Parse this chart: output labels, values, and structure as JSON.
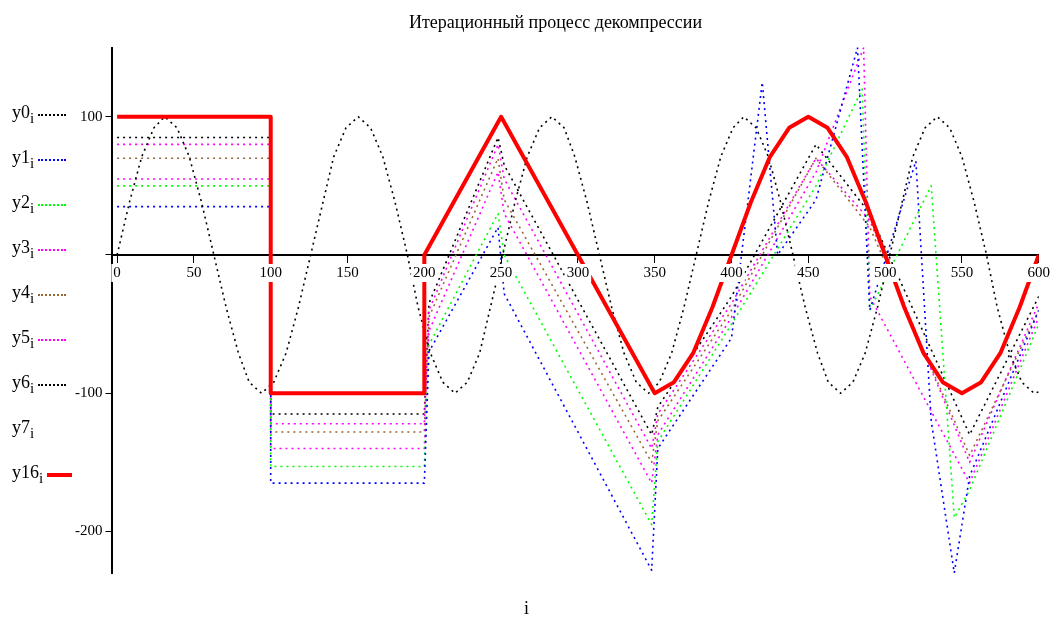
{
  "chart_data": {
    "type": "line",
    "title": "Итерационный процесс декомпрессии",
    "xlabel": "i",
    "xlim": [
      -3,
      600
    ],
    "xticks": [
      0,
      50,
      100,
      150,
      200,
      250,
      300,
      350,
      400,
      450,
      500,
      550,
      600
    ],
    "ylim": [
      -230,
      150
    ],
    "yticks": [
      -200,
      -100,
      {
        "value": 0,
        "label": null
      },
      100
    ],
    "legend": "left",
    "annotations": [
      "y7$_{i}$"
    ],
    "marker": "none",
    "line_style": "dotted",
    "series": [
      {
        "name": "y0$_{i}$",
        "color": "#000000",
        "x": [
          0,
          8,
          16,
          24,
          31,
          39,
          47,
          55,
          63,
          71,
          79,
          86,
          94,
          102,
          110,
          118,
          126,
          134,
          141,
          149,
          157,
          165,
          173,
          181,
          189,
          196,
          204,
          212,
          220,
          228,
          236,
          243,
          251,
          259,
          267,
          275,
          283,
          291,
          298,
          306,
          314,
          322,
          330,
          338,
          346,
          353,
          361,
          369,
          377,
          385,
          393,
          401,
          408,
          416,
          424,
          432,
          440,
          448,
          456,
          463,
          471,
          479,
          487,
          495,
          503,
          511,
          518,
          526,
          534,
          542,
          550,
          558,
          566,
          573,
          581,
          589,
          597,
          600
        ],
        "values": [
          0,
          38,
          71,
          92,
          100,
          92,
          71,
          38,
          0,
          -38,
          -71,
          -92,
          -100,
          -92,
          -71,
          -38,
          0,
          38,
          71,
          92,
          100,
          92,
          71,
          38,
          0,
          -38,
          -71,
          -92,
          -100,
          -92,
          -71,
          -38,
          0,
          38,
          71,
          92,
          100,
          92,
          71,
          38,
          0,
          -38,
          -71,
          -92,
          -100,
          -92,
          -71,
          -38,
          0,
          38,
          71,
          92,
          100,
          92,
          71,
          38,
          0,
          -38,
          -71,
          -92,
          -100,
          -92,
          -71,
          -38,
          0,
          38,
          71,
          92,
          100,
          92,
          71,
          38,
          0,
          -38,
          -71,
          -92,
          -100,
          -99
        ]
      },
      {
        "name": "y1$_{i}$",
        "color": "#0000ff",
        "x": [
          0,
          100,
          100,
          200,
          203,
          248,
          252,
          348,
          352,
          400,
          420,
          430,
          455,
          482,
          490,
          520,
          530,
          545,
          555,
          600
        ],
        "values": [
          35,
          35,
          -165,
          -165,
          -70,
          20,
          -28,
          -228,
          -140,
          -60,
          125,
          0,
          40,
          150,
          -40,
          68,
          -120,
          -230,
          -160,
          -40
        ]
      },
      {
        "name": "y2$_{i}$",
        "color": "#00ff00",
        "x": [
          0,
          100,
          100,
          200,
          203,
          248,
          252,
          348,
          352,
          400,
          455,
          485,
          490,
          530,
          545,
          555,
          600
        ],
        "values": [
          50,
          50,
          -153,
          -153,
          -65,
          30,
          0,
          -195,
          -135,
          -50,
          50,
          120,
          -40,
          50,
          -190,
          -170,
          -50
        ]
      },
      {
        "name": "y3$_{i}$",
        "color": "#ff00ff",
        "x": [
          0,
          100,
          100,
          200,
          203,
          248,
          252,
          348,
          352,
          400,
          455,
          486,
          490,
          555,
          600
        ],
        "values": [
          55,
          55,
          -140,
          -140,
          -55,
          60,
          30,
          -165,
          -130,
          -45,
          60,
          150,
          -30,
          -165,
          -45
        ]
      },
      {
        "name": "y4$_{i}$",
        "color": "#996633",
        "x": [
          0,
          100,
          100,
          200,
          203,
          248,
          252,
          348,
          352,
          400,
          455,
          490,
          555,
          600
        ],
        "values": [
          70,
          70,
          -128,
          -128,
          -45,
          70,
          40,
          -150,
          -120,
          -40,
          70,
          20,
          -145,
          -40
        ]
      },
      {
        "name": "y5$_{i}$",
        "color": "#ff00ff",
        "x": [
          0,
          100,
          100,
          200,
          203,
          248,
          252,
          348,
          352,
          400,
          455,
          490,
          555,
          600
        ],
        "values": [
          80,
          80,
          -122,
          -122,
          -40,
          80,
          55,
          -140,
          -115,
          -35,
          70,
          25,
          -150,
          -35
        ]
      },
      {
        "name": "y6$_{i}$",
        "color": "#000000",
        "x": [
          0,
          100,
          100,
          200,
          203,
          248,
          252,
          348,
          352,
          400,
          455,
          490,
          555,
          600
        ],
        "values": [
          85,
          85,
          -115,
          -115,
          -35,
          85,
          65,
          -130,
          -110,
          -30,
          80,
          30,
          -130,
          -30
        ]
      },
      {
        "name": "y16$_{i}$",
        "color": "#ff0000",
        "line_style": "solid",
        "x": [
          0,
          100,
          100,
          200,
          200,
          250,
          350,
          362.5,
          375,
          387.5,
          400,
          412.5,
          425,
          437.5,
          450,
          462.5,
          475,
          487.5,
          500,
          512.5,
          525,
          537.5,
          550,
          562.5,
          575,
          587.5,
          600
        ],
        "values": [
          100,
          100,
          -100,
          -100,
          0,
          100,
          -100,
          -92,
          -71,
          -38,
          0,
          38,
          71,
          92,
          100,
          92,
          71,
          38,
          0,
          -38,
          -71,
          -92,
          -100,
          -92,
          -71,
          -38,
          0
        ]
      }
    ]
  }
}
